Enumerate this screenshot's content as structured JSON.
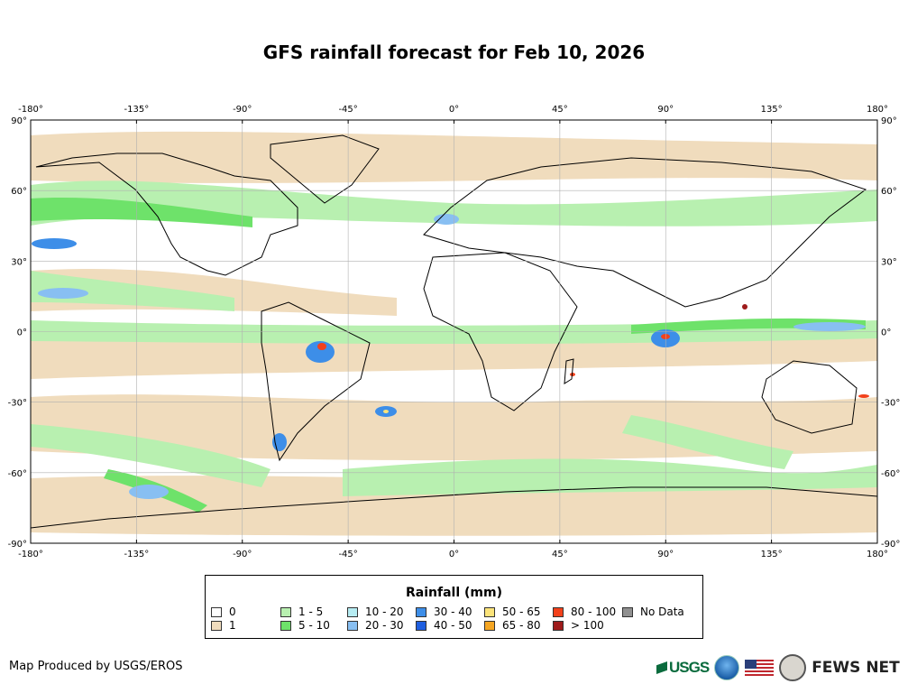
{
  "title": "GFS rainfall forecast for Feb 10, 2026",
  "map": {
    "lon_ticks": [
      {
        "deg": -180,
        "label": "-180°"
      },
      {
        "deg": -135,
        "label": "-135°"
      },
      {
        "deg": -90,
        "label": "-90°"
      },
      {
        "deg": -45,
        "label": "-45°"
      },
      {
        "deg": 0,
        "label": "0°"
      },
      {
        "deg": 45,
        "label": "45°"
      },
      {
        "deg": 90,
        "label": "90°"
      },
      {
        "deg": 135,
        "label": "135°"
      },
      {
        "deg": 180,
        "label": "180°"
      }
    ],
    "lat_ticks": [
      {
        "deg": 90,
        "label": "90°"
      },
      {
        "deg": 60,
        "label": "60°"
      },
      {
        "deg": 30,
        "label": "30°"
      },
      {
        "deg": 0,
        "label": "0°"
      },
      {
        "deg": -30,
        "label": "-30°"
      },
      {
        "deg": -60,
        "label": "-60°"
      },
      {
        "deg": -90,
        "label": "-90°"
      }
    ]
  },
  "legend": {
    "title": "Rainfall (mm)",
    "items": [
      {
        "label": "0",
        "color": "#ffffff"
      },
      {
        "label": "1",
        "color": "#f0dcbd"
      },
      {
        "label": "1 - 5",
        "color": "#b8f0b0"
      },
      {
        "label": "5 - 10",
        "color": "#6ee26a"
      },
      {
        "label": "10 - 20",
        "color": "#b6ecf2"
      },
      {
        "label": "20 - 30",
        "color": "#88bff2"
      },
      {
        "label": "30 - 40",
        "color": "#3d8ee8"
      },
      {
        "label": "40 - 50",
        "color": "#1f5fe0"
      },
      {
        "label": "50 - 65",
        "color": "#fbe37a"
      },
      {
        "label": "65 - 80",
        "color": "#f5a623"
      },
      {
        "label": "80 - 100",
        "color": "#f2411b"
      },
      {
        "label": "> 100",
        "color": "#9e1b1b"
      },
      {
        "label": "No Data",
        "color": "#909090"
      }
    ]
  },
  "footer": {
    "credit": "Map Produced by USGS/EROS",
    "usgs_text": "USGS",
    "fews_text": "FEWS NET"
  }
}
